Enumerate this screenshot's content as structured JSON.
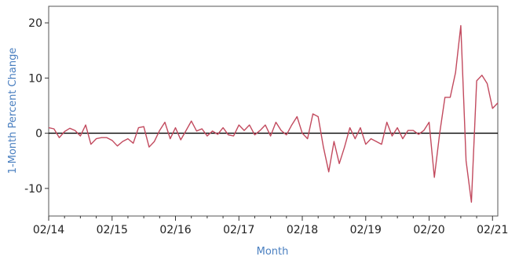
{
  "chart_data": {
    "type": "line",
    "title": "",
    "xlabel": "Month",
    "ylabel": "1-Month Percent Change",
    "xlim": [
      "2014-02",
      "2021-03"
    ],
    "ylim": [
      -15,
      23
    ],
    "grid": false,
    "legend": "none",
    "x_ticks": [
      {
        "label": "02/14",
        "value": "2014-02"
      },
      {
        "label": "02/15",
        "value": "2015-02"
      },
      {
        "label": "02/16",
        "value": "2016-02"
      },
      {
        "label": "02/17",
        "value": "2017-02"
      },
      {
        "label": "02/18",
        "value": "2018-02"
      },
      {
        "label": "02/19",
        "value": "2019-02"
      },
      {
        "label": "02/20",
        "value": "2020-02"
      },
      {
        "label": "02/21",
        "value": "2021-02"
      }
    ],
    "y_ticks": [
      -10,
      0,
      10,
      20
    ],
    "reference_line": 0,
    "colors": {
      "series": "#c24a5e",
      "zero_line": "#000000",
      "axis": "#333333",
      "title": "#4a7fc0"
    },
    "series": [
      {
        "x": [
          "2014-02",
          "2014-03",
          "2014-04",
          "2014-05",
          "2014-06",
          "2014-07",
          "2014-08",
          "2014-09",
          "2014-10",
          "2014-11",
          "2014-12",
          "2015-01",
          "2015-02",
          "2015-03",
          "2015-04",
          "2015-05",
          "2015-06",
          "2015-07",
          "2015-08",
          "2015-09",
          "2015-10",
          "2015-11",
          "2015-12",
          "2016-01",
          "2016-02",
          "2016-03",
          "2016-04",
          "2016-05",
          "2016-06",
          "2016-07",
          "2016-08",
          "2016-09",
          "2016-10",
          "2016-11",
          "2016-12",
          "2017-01",
          "2017-02",
          "2017-03",
          "2017-04",
          "2017-05",
          "2017-06",
          "2017-07",
          "2017-08",
          "2017-09",
          "2017-10",
          "2017-11",
          "2017-12",
          "2018-01",
          "2018-02",
          "2018-03",
          "2018-04",
          "2018-05",
          "2018-06",
          "2018-07",
          "2018-08",
          "2018-09",
          "2018-10",
          "2018-11",
          "2018-12",
          "2019-01",
          "2019-02",
          "2019-03",
          "2019-04",
          "2019-05",
          "2019-06",
          "2019-07",
          "2019-08",
          "2019-09",
          "2019-10",
          "2019-11",
          "2019-12",
          "2020-01",
          "2020-02",
          "2020-03",
          "2020-04",
          "2020-05",
          "2020-06",
          "2020-07",
          "2020-08",
          "2020-09",
          "2020-10",
          "2020-11",
          "2020-12",
          "2021-01",
          "2021-02",
          "2021-03"
        ],
        "values": [
          1,
          0.8,
          -0.8,
          0.3,
          0.9,
          0.5,
          -0.5,
          1.5,
          -2,
          -1,
          -0.8,
          -0.8,
          -1.3,
          -2.3,
          -1.5,
          -1,
          -1.8,
          1,
          1.2,
          -2.5,
          -1.5,
          0.5,
          2,
          -1,
          1,
          -1.2,
          0.5,
          2.2,
          0.4,
          0.8,
          -0.5,
          0.4,
          -0.2,
          1,
          -0.3,
          -0.5,
          1.5,
          0.5,
          1.5,
          -0.3,
          0.5,
          1.5,
          -0.5,
          2,
          0.5,
          -0.3,
          1.5,
          3,
          0,
          -1,
          3.5,
          3,
          -2.5,
          -7,
          -1.5,
          -5.5,
          -2.5,
          1,
          -1,
          1,
          -2,
          -1,
          -1.5,
          -2,
          2,
          -0.5,
          1,
          -1,
          0.5,
          0.5,
          -0.2,
          0.5,
          2,
          -8,
          0,
          6.5,
          6.5,
          11,
          19.5,
          -5,
          -12.5,
          9.5,
          10.5,
          9,
          4.5,
          5.5
        ]
      }
    ]
  }
}
